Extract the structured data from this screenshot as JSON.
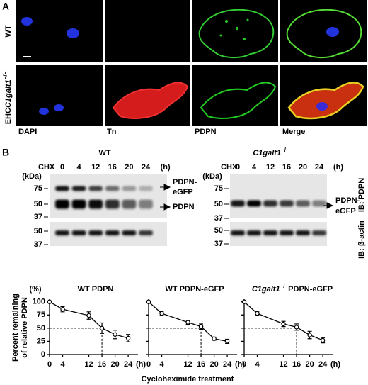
{
  "panel_a": {
    "label": "A",
    "rows": [
      {
        "label": "WT"
      },
      {
        "prefix": "EHC",
        "gene": "C1galt1",
        "genotype": "−/−"
      }
    ],
    "channels": [
      "DAPI",
      "Tn",
      "PDPN",
      "Merge"
    ],
    "channel_colors": [
      "#1a2bd6",
      "#e01010",
      "#1fb21f",
      "#000000"
    ]
  },
  "panel_b": {
    "label": "B",
    "blots": [
      {
        "title": "WT",
        "treatment": "CHX",
        "lanes": [
          0,
          4,
          12,
          16,
          20,
          24
        ],
        "time_unit": "(h)",
        "mw_unit": "(kDa)",
        "markers": [
          75,
          50,
          37
        ],
        "actin_markers": [
          50,
          37
        ],
        "bands": [
          [
            "PDPN-",
            "eGFP"
          ],
          [
            "PDPN"
          ]
        ]
      },
      {
        "title_gene": "C1galt1",
        "title_genotype": "−/−",
        "treatment": "CHX",
        "lanes": [
          0,
          4,
          12,
          16,
          20,
          24
        ],
        "time_unit": "(h)",
        "mw_unit": "(kDa)",
        "markers": [
          75,
          50,
          37
        ],
        "actin_markers": [
          50,
          37
        ],
        "bands": [
          [
            "PDPN-",
            "eGFP"
          ]
        ]
      }
    ],
    "antibodies": [
      "IB: PDPN",
      "IB: β-actin"
    ]
  },
  "chart_labels": {
    "ylabel": [
      "Percent remaining",
      "of relative PDPN"
    ],
    "xlabel": "Cycloheximide treatment"
  },
  "chart_data": [
    {
      "type": "line",
      "title": "WT PDPN",
      "y_unit": "(%)",
      "x_unit": "(h)",
      "x": [
        0,
        4,
        12,
        16,
        20,
        24
      ],
      "values": [
        100,
        86,
        74,
        50,
        38,
        31
      ],
      "errors": [
        0,
        5,
        7,
        10,
        8,
        7
      ],
      "color": "#000000",
      "xlim": [
        0,
        27
      ],
      "ylim": [
        0,
        105
      ],
      "xticks": [
        0,
        4,
        12,
        16,
        20,
        24
      ],
      "yticks": [
        0,
        25,
        50,
        75,
        100
      ],
      "ytick_labels": true,
      "half_life": {
        "x": 16,
        "y": 50
      }
    },
    {
      "type": "line",
      "title": "WT PDPN-eGFP",
      "x_unit": "(h)",
      "x": [
        0,
        4,
        12,
        16,
        20,
        24
      ],
      "values": [
        100,
        78,
        61,
        53,
        30,
        25
      ],
      "errors": [
        0,
        4,
        4,
        5,
        3,
        4
      ],
      "color": "#000000",
      "xlim": [
        0,
        27
      ],
      "ylim": [
        0,
        105
      ],
      "xticks": [
        0,
        4,
        12,
        16,
        20,
        24
      ],
      "yticks": [
        0,
        25,
        50,
        75,
        100
      ],
      "ytick_labels": false,
      "half_life": {
        "x": 16,
        "y": 50
      }
    },
    {
      "type": "line",
      "title_gene": "C1galt1",
      "title_genotype": "−/−",
      "title": "PDPN-eGFP",
      "x_unit": "(h)",
      "x": [
        0,
        4,
        12,
        16,
        20,
        24
      ],
      "values": [
        100,
        78,
        58,
        52,
        37,
        27
      ],
      "errors": [
        0,
        4,
        5,
        6,
        7,
        5
      ],
      "color": "#000000",
      "xlim": [
        0,
        27
      ],
      "ylim": [
        0,
        105
      ],
      "xticks": [
        0,
        4,
        12,
        16,
        20,
        24
      ],
      "yticks": [
        0,
        25,
        50,
        75,
        100
      ],
      "ytick_labels": false,
      "half_life": {
        "x": 16,
        "y": 50
      }
    }
  ]
}
